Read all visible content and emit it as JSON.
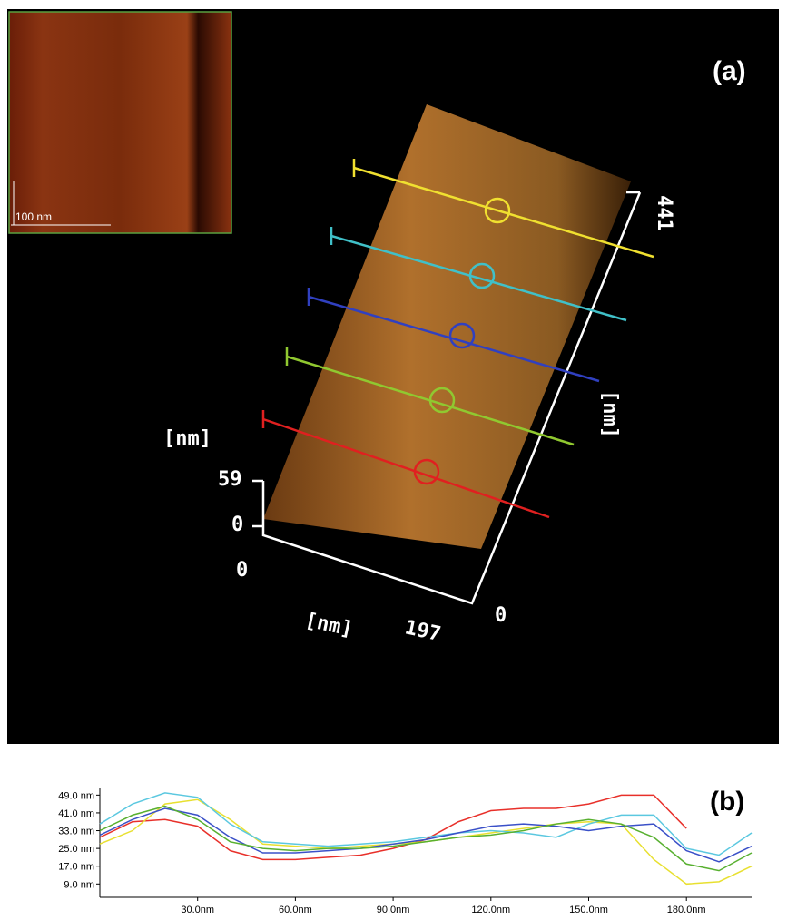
{
  "panel_a": {
    "label": "(a)",
    "inset_scale": "100 nm",
    "axis_texts": {
      "z_unit": "[nm]",
      "z_max": "59",
      "z_min": "0",
      "x_origin": "0",
      "x_unit": "[nm]",
      "x_max": "197",
      "y_origin": "0",
      "y_max": "441",
      "y_unit": "[nm]"
    }
  },
  "chart_data": {
    "type": "line",
    "label": "(b)",
    "x": [
      0,
      10,
      20,
      30,
      40,
      50,
      60,
      70,
      80,
      90,
      100,
      110,
      120,
      130,
      140,
      150,
      160,
      170,
      180,
      190,
      200
    ],
    "series": [
      {
        "color": "#e8302a",
        "values": [
          30,
          37,
          38,
          35,
          24,
          20,
          20,
          21,
          22,
          25,
          29,
          37,
          42,
          43,
          43,
          45,
          49,
          49,
          34,
          null,
          null
        ]
      },
      {
        "color": "#e8e030",
        "values": [
          27,
          33,
          45,
          47,
          38,
          27,
          26,
          25,
          26,
          27,
          28,
          30,
          32,
          34,
          36,
          37,
          36,
          20,
          9,
          10,
          17
        ]
      },
      {
        "color": "#5bc8e0",
        "values": [
          36,
          45,
          50,
          48,
          36,
          28,
          27,
          26,
          27,
          28,
          30,
          32,
          33,
          32,
          30,
          36,
          40,
          40,
          25,
          22,
          32
        ]
      },
      {
        "color": "#3a50c8",
        "values": [
          31,
          38,
          43,
          40,
          30,
          23,
          23,
          24,
          25,
          27,
          29,
          32,
          35,
          36,
          35,
          33,
          35,
          36,
          24,
          19,
          26
        ]
      },
      {
        "color": "#58b030",
        "values": [
          33,
          40,
          44,
          38,
          28,
          25,
          24,
          25,
          25,
          26,
          28,
          30,
          31,
          33,
          36,
          38,
          36,
          30,
          18,
          15,
          23
        ]
      }
    ],
    "xlim": [
      0,
      200
    ],
    "xticks": [
      {
        "value": 30,
        "label": "30.0nm"
      },
      {
        "value": 60,
        "label": "60.0nm"
      },
      {
        "value": 90,
        "label": "90.0nm"
      },
      {
        "value": 120,
        "label": "120.0nm"
      },
      {
        "value": 150,
        "label": "150.0nm"
      },
      {
        "value": 180,
        "label": "180.0nm"
      }
    ],
    "ylim": [
      3,
      52
    ],
    "yticks": [
      {
        "value": 9,
        "label": "9.0 nm"
      },
      {
        "value": 17,
        "label": "17.0 nm"
      },
      {
        "value": 25,
        "label": "25.0 nm"
      },
      {
        "value": 33,
        "label": "33.0 nm"
      },
      {
        "value": 41,
        "label": "41.0 nm"
      },
      {
        "value": 49,
        "label": "49.0 nm"
      }
    ]
  }
}
